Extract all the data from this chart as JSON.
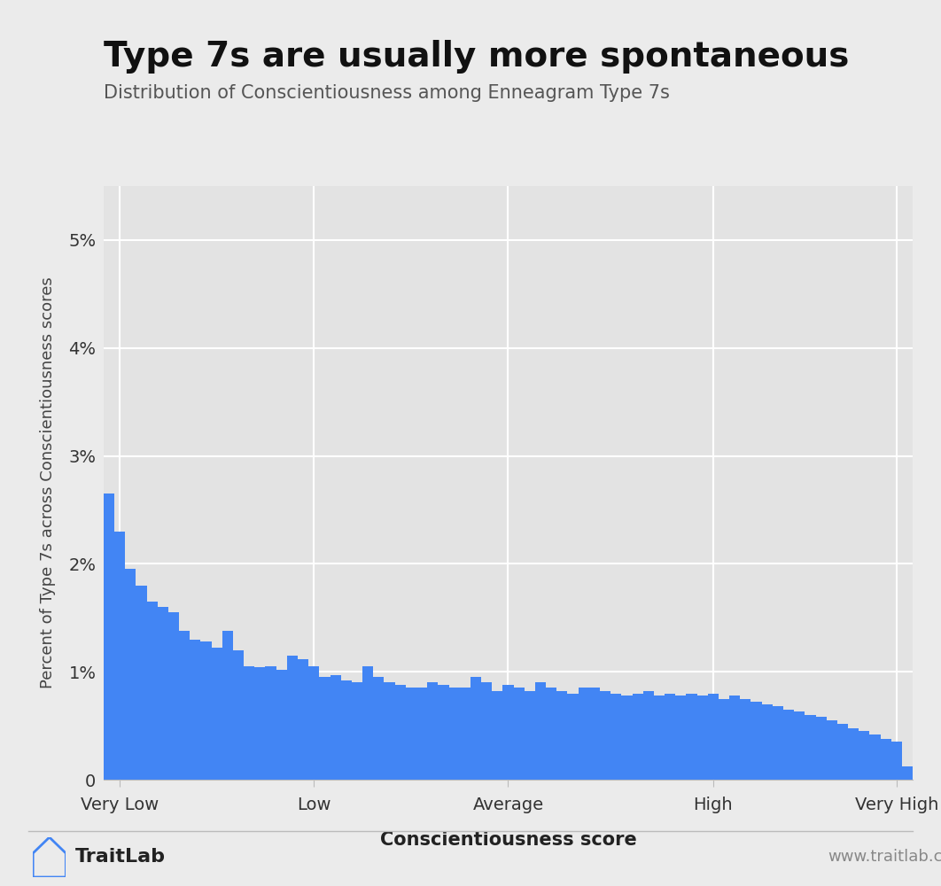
{
  "title": "Type 7s are usually more spontaneous",
  "subtitle": "Distribution of Conscientiousness among Enneagram Type 7s",
  "xlabel": "Conscientiousness score",
  "ylabel": "Percent of Type 7s across Conscientiousness scores",
  "background_color": "#ebebeb",
  "plot_bg_color": "#e3e3e3",
  "bar_color": "#4285f4",
  "ylim": [
    0,
    0.055
  ],
  "yticks": [
    0,
    0.01,
    0.02,
    0.03,
    0.04,
    0.05
  ],
  "ytick_labels": [
    "0",
    "1%",
    "2%",
    "3%",
    "4%",
    "5%"
  ],
  "xtick_labels": [
    "Very Low",
    "Low",
    "Average",
    "High",
    "Very High"
  ],
  "bar_values": [
    2.65,
    2.3,
    1.95,
    1.8,
    1.65,
    1.6,
    1.55,
    1.38,
    1.3,
    1.28,
    1.22,
    1.38,
    1.2,
    1.05,
    1.04,
    1.05,
    1.02,
    1.15,
    1.12,
    1.05,
    0.95,
    0.97,
    0.92,
    0.9,
    1.05,
    0.95,
    0.9,
    0.88,
    0.85,
    0.85,
    0.9,
    0.88,
    0.85,
    0.85,
    0.95,
    0.9,
    0.82,
    0.88,
    0.85,
    0.82,
    0.9,
    0.85,
    0.82,
    0.8,
    0.85,
    0.85,
    0.82,
    0.8,
    0.78,
    0.8,
    0.82,
    0.78,
    0.8,
    0.78,
    0.8,
    0.78,
    0.8,
    0.75,
    0.78,
    0.75,
    0.72,
    0.7,
    0.68,
    0.65,
    0.63,
    0.6,
    0.58,
    0.55,
    0.52,
    0.48,
    0.45,
    0.42,
    0.38,
    0.35,
    0.12
  ],
  "footer_text": "www.traitlab.com",
  "brand_text": "TraitLab",
  "title_fontsize": 28,
  "subtitle_fontsize": 15,
  "xlabel_fontsize": 15,
  "ylabel_fontsize": 13,
  "tick_fontsize": 14,
  "footer_fontsize": 13,
  "brand_fontsize": 16
}
